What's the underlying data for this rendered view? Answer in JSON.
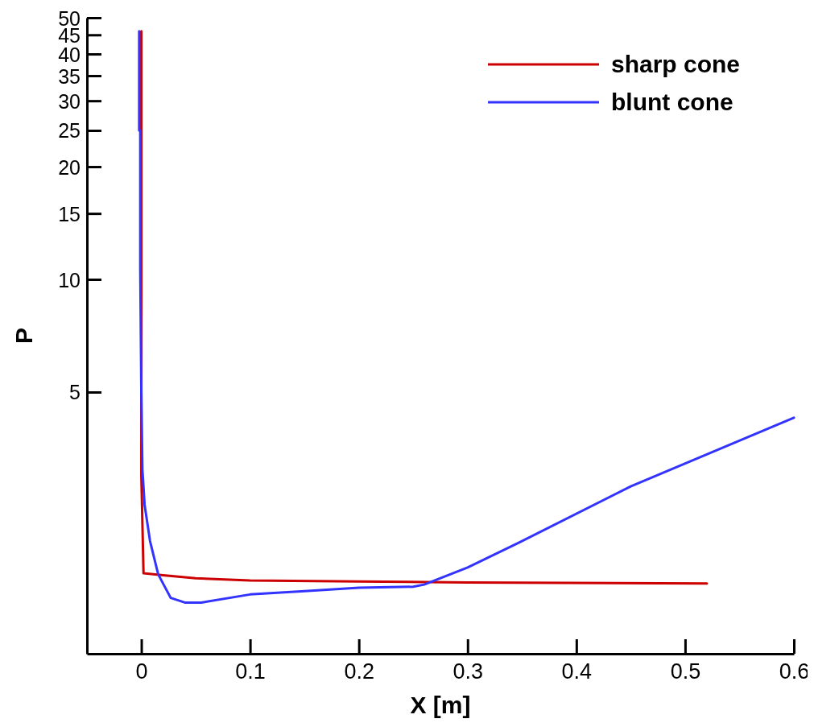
{
  "chart_data": {
    "type": "line",
    "xlabel": "X [m]",
    "ylabel": "P",
    "log": "y",
    "xlim": [
      -0.05,
      0.6
    ],
    "ylim": [
      1,
      50
    ],
    "xticks": [
      0,
      0.1,
      0.2,
      0.3,
      0.4,
      0.5,
      0.6
    ],
    "yticks": [
      5,
      10,
      15,
      20,
      25,
      30,
      35,
      40,
      45,
      50
    ],
    "grid": false,
    "legend": "top right",
    "line_style": "solid",
    "marker": "none",
    "series": [
      {
        "name": "sharp cone",
        "color": "#cc0000",
        "x": [
          0,
          0,
          0.002,
          0.02,
          0.05,
          0.1,
          0.2,
          0.3,
          0.52
        ],
        "values": [
          46,
          3.0,
          1.64,
          1.62,
          1.59,
          1.57,
          1.56,
          1.55,
          1.54
        ]
      },
      {
        "name": "blunt cone",
        "color": "#3333ff",
        "x": [
          -0.002,
          -0.002,
          -0.001,
          -0.001,
          0,
          0.001,
          0.003,
          0.008,
          0.0155,
          0.027,
          0.04,
          0.055,
          0.1,
          0.15,
          0.2,
          0.25,
          0.26,
          0.3,
          0.347,
          0.45,
          0.6
        ],
        "values": [
          46,
          25,
          25,
          10.7,
          5,
          3.1,
          2.5,
          2.0,
          1.63,
          1.41,
          1.37,
          1.37,
          1.44,
          1.47,
          1.5,
          1.51,
          1.53,
          1.7,
          1.98,
          2.8,
          4.27
        ]
      }
    ]
  }
}
